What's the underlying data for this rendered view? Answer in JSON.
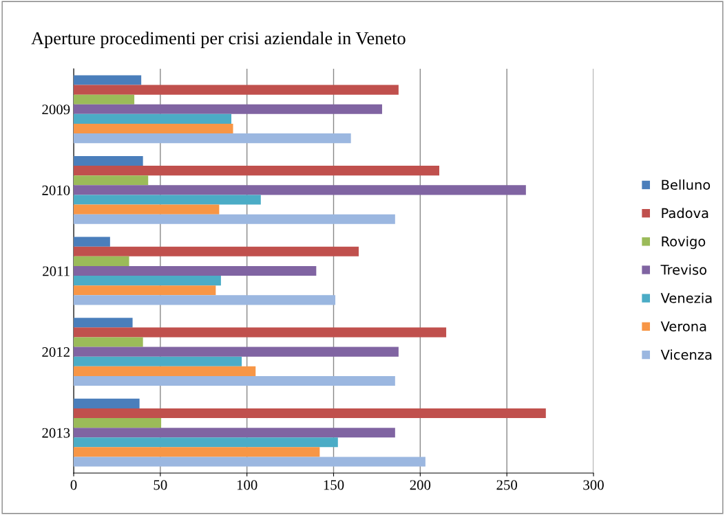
{
  "chart_data": {
    "type": "bar",
    "orientation": "horizontal",
    "title": "Aperture procedimenti per crisi aziendale in Veneto",
    "categories": [
      "2009",
      "2010",
      "2011",
      "2012",
      "2013"
    ],
    "series": [
      {
        "name": "Belluno",
        "color": "#4a7ebb",
        "values": [
          39,
          40,
          21,
          34,
          38
        ]
      },
      {
        "name": "Padova",
        "color": "#c0504d",
        "values": [
          187.5,
          211,
          164.5,
          215,
          272.5
        ]
      },
      {
        "name": "Rovigo",
        "color": "#9bbb59",
        "values": [
          35,
          43,
          32,
          40,
          50.5
        ]
      },
      {
        "name": "Treviso",
        "color": "#8064a2",
        "values": [
          178,
          261,
          140,
          187.5,
          185.5
        ]
      },
      {
        "name": "Venezia",
        "color": "#4bacc6",
        "values": [
          91,
          108,
          85,
          97,
          152.5
        ]
      },
      {
        "name": "Verona",
        "color": "#f79646",
        "values": [
          92,
          84,
          82,
          105,
          142
        ]
      },
      {
        "name": "Vicenza",
        "color": "#9bb7e0",
        "values": [
          160,
          185.5,
          151,
          185.5,
          203
        ]
      }
    ],
    "xlim": [
      0,
      300
    ],
    "xticks": [
      0,
      50,
      100,
      150,
      200,
      250,
      300
    ],
    "grid": "x",
    "legend": "right"
  }
}
